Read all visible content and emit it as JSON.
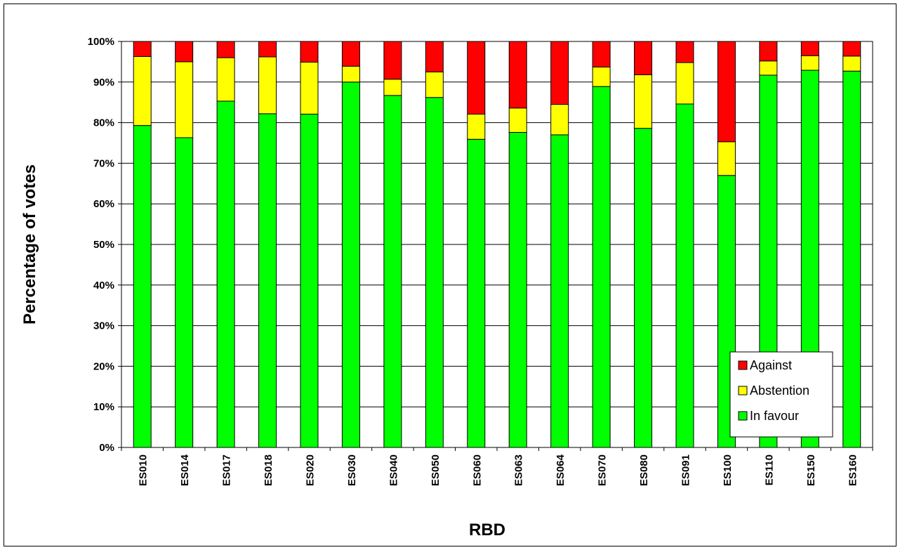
{
  "chart_data": {
    "type": "bar",
    "stacked": true,
    "title": "",
    "xlabel": "RBD",
    "ylabel": "Percentage of votes",
    "ylim": [
      0,
      100
    ],
    "yticks": [
      "0%",
      "10%",
      "20%",
      "30%",
      "40%",
      "50%",
      "60%",
      "70%",
      "80%",
      "90%",
      "100%"
    ],
    "grid": true,
    "legend_position": "bottom-right",
    "categories": [
      "ES010",
      "ES014",
      "ES017",
      "ES018",
      "ES020",
      "ES030",
      "ES040",
      "ES050",
      "ES060",
      "ES063",
      "ES064",
      "ES070",
      "ES080",
      "ES091",
      "ES100",
      "ES110",
      "ES150",
      "ES160"
    ],
    "series": [
      {
        "name": "In favour",
        "color": "#00ff00",
        "values": [
          79.3,
          76.3,
          85.3,
          82.2,
          82.1,
          90.0,
          86.7,
          86.2,
          75.9,
          77.6,
          77.0,
          88.9,
          78.6,
          84.6,
          67.0,
          91.7,
          92.9,
          92.7
        ]
      },
      {
        "name": "Abstention",
        "color": "#ffff00",
        "values": [
          17.0,
          18.7,
          10.7,
          14.0,
          12.8,
          3.9,
          4.0,
          6.3,
          6.2,
          6.0,
          7.5,
          4.8,
          13.2,
          10.2,
          8.3,
          3.5,
          3.6,
          3.7
        ]
      },
      {
        "name": "Against",
        "color": "#ff0000",
        "values": [
          3.7,
          5.0,
          4.0,
          3.8,
          5.1,
          6.1,
          9.3,
          7.5,
          17.9,
          16.4,
          15.5,
          6.3,
          8.2,
          5.2,
          24.7,
          4.8,
          3.5,
          3.6
        ]
      }
    ],
    "legend": [
      "Against",
      "Abstention",
      "In favour"
    ]
  }
}
